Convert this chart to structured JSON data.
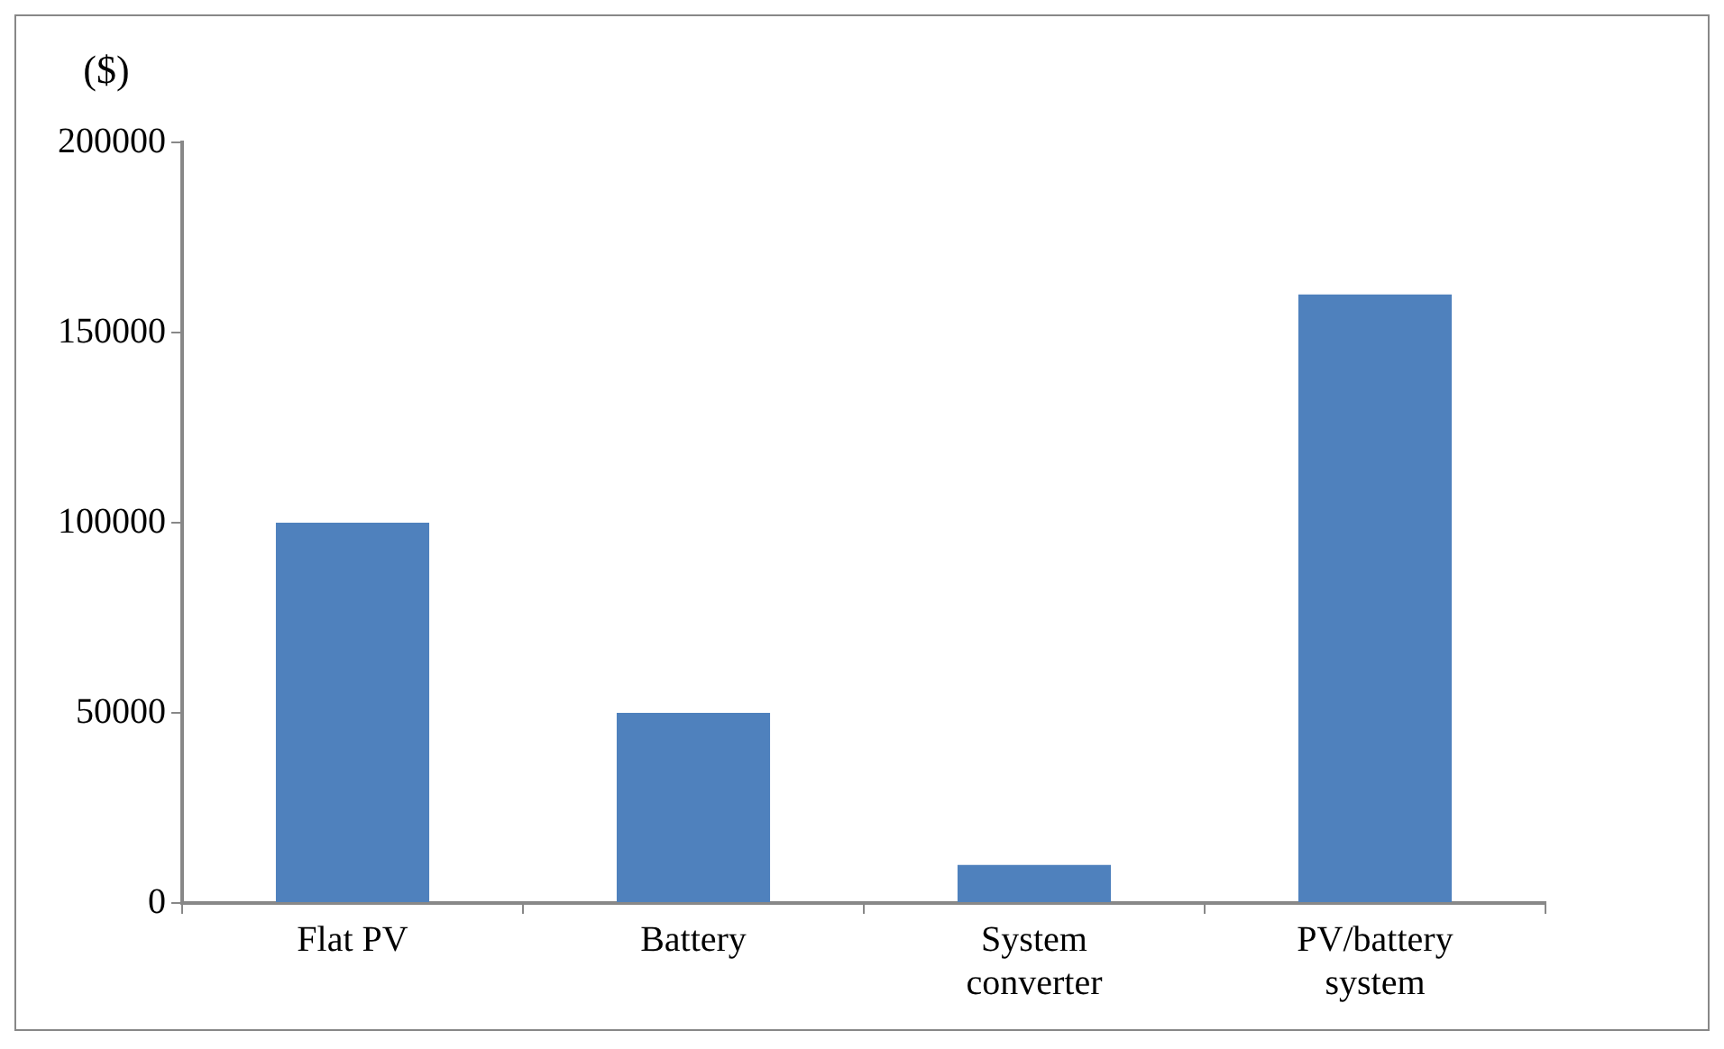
{
  "chart_data": {
    "type": "bar",
    "ylabel": "($)",
    "categories": [
      "Flat PV",
      "Battery",
      "System converter",
      "PV/battery system"
    ],
    "values": [
      100000,
      50000,
      10000,
      160000
    ],
    "color": "#4f81bd",
    "ylim": [
      0,
      200000
    ],
    "yticks": [
      0,
      50000,
      100000,
      150000,
      200000
    ],
    "grid": false,
    "legend": false
  }
}
